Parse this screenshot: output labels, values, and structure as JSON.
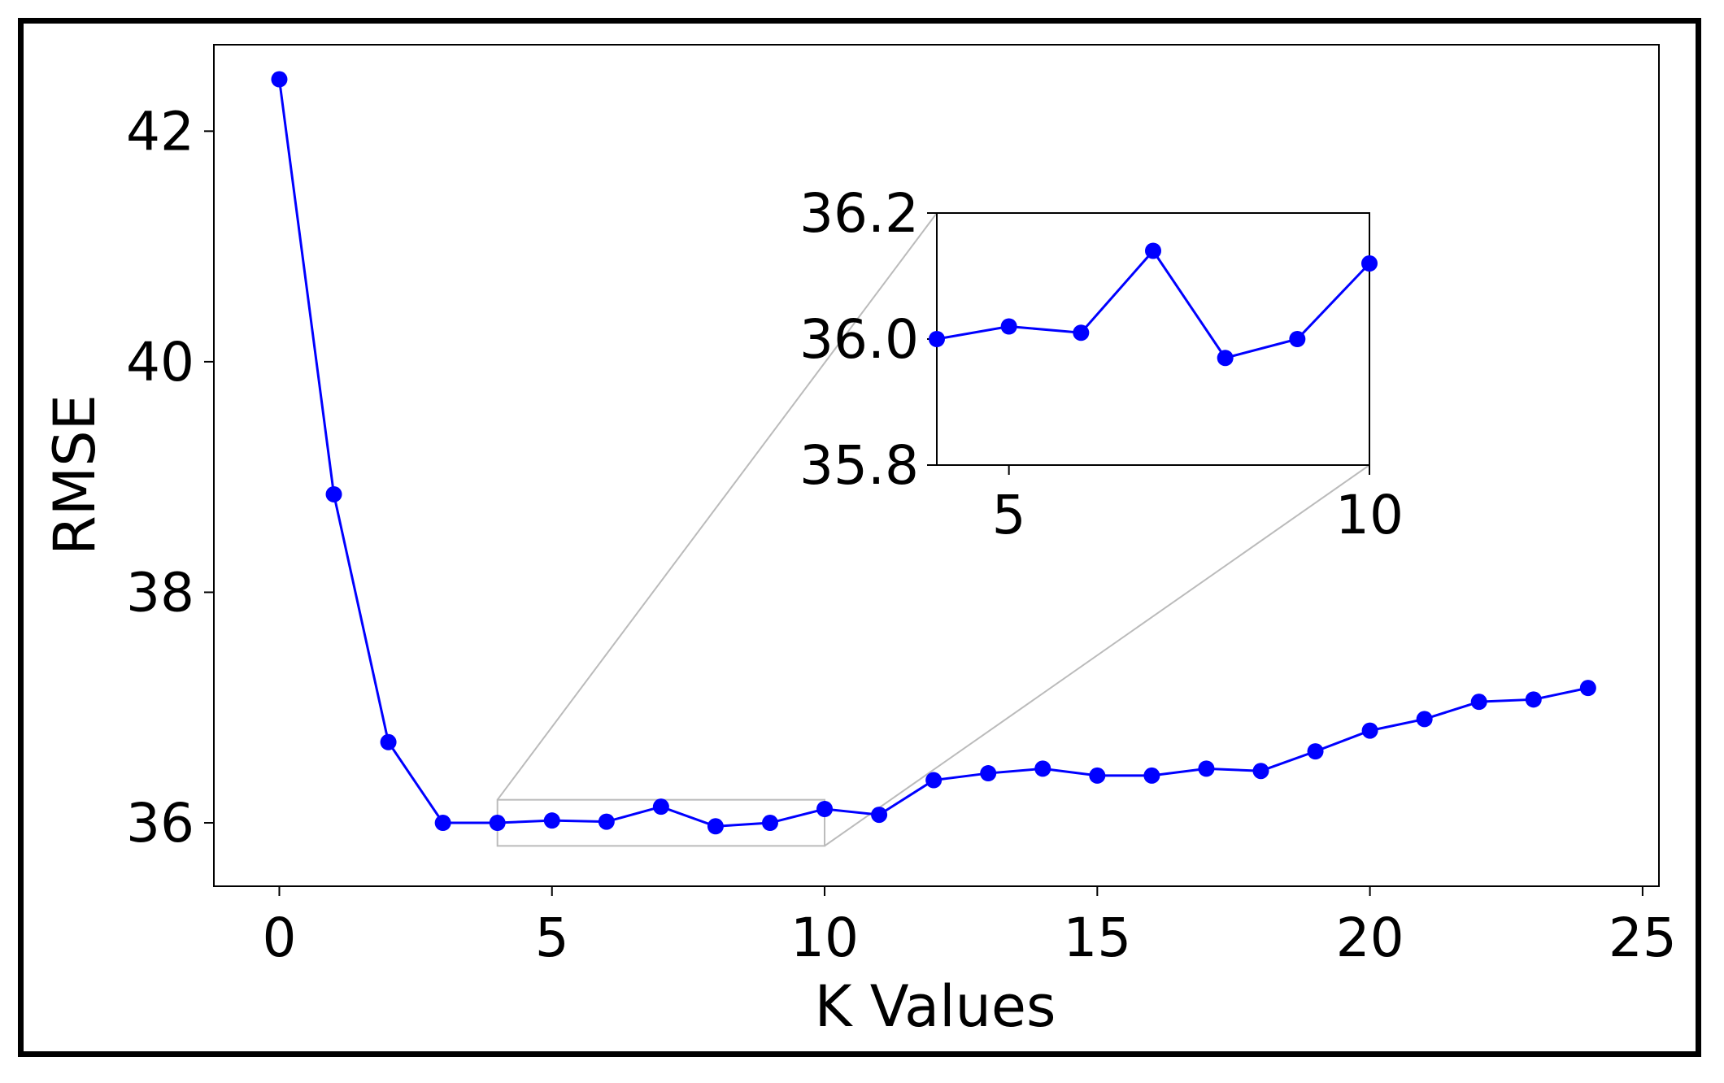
{
  "chart_data": {
    "type": "line",
    "xlabel": "K Values",
    "ylabel": "RMSE",
    "xlim": [
      -1.2,
      25.3
    ],
    "ylim": [
      35.45,
      42.75
    ],
    "x_ticks": [
      0,
      5,
      10,
      15,
      20,
      25
    ],
    "y_ticks": [
      36,
      38,
      40,
      42
    ],
    "grid": false,
    "line_color": "#0000ff",
    "marker": "circle",
    "series": [
      {
        "x": [
          0,
          1,
          2,
          3,
          4,
          5,
          6,
          7,
          8,
          9,
          10,
          11,
          12,
          13,
          14,
          15,
          16,
          17,
          18,
          19,
          20,
          21,
          22,
          23,
          24
        ],
        "values": [
          42.45,
          38.85,
          36.7,
          36.0,
          36.0,
          36.02,
          36.01,
          36.14,
          35.97,
          36.0,
          36.12,
          36.07,
          36.37,
          36.43,
          36.47,
          36.41,
          36.41,
          36.47,
          36.45,
          36.62,
          36.8,
          36.9,
          37.05,
          37.07,
          37.17
        ]
      }
    ],
    "inset": {
      "xlim": [
        4,
        10
      ],
      "ylim": [
        35.8,
        36.2
      ],
      "x_ticks": [
        5,
        10
      ],
      "y_ticks": [
        "35.8",
        "36.0",
        "36.2"
      ],
      "connector_color": "#bbbbbb"
    }
  }
}
